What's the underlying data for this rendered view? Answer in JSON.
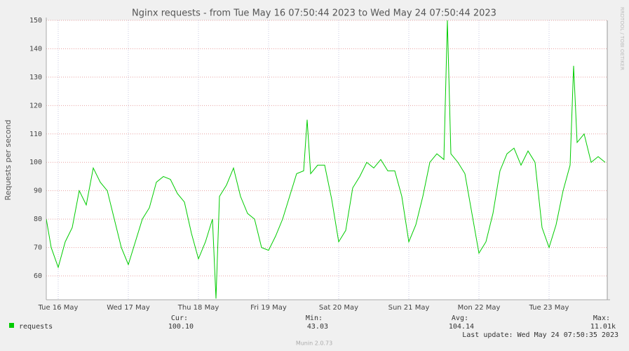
{
  "chart_data": {
    "type": "line",
    "title": "Nginx requests - from Tue May 16 07:50:44 2023 to Wed May 24 07:50:44 2023",
    "y_label": "Requests per second",
    "side_label": "RRDTOOL / TOBI OETIKER",
    "footer": "Munin 2.0.73",
    "last_update": "Last update: Wed May 24 07:50:35 2023",
    "stats": {
      "headers": [
        "Cur:",
        "Min:",
        "Avg:",
        "Max:"
      ],
      "values": [
        "100.10",
        "43.03",
        "104.14",
        "11.01k"
      ]
    },
    "grid": true,
    "xlim": [
      16.33,
      24.33
    ],
    "ylim": [
      51.6,
      150
    ],
    "xticks": [
      {
        "value": 16.5,
        "label": "Tue 16 May"
      },
      {
        "value": 17.5,
        "label": "Wed 17 May"
      },
      {
        "value": 18.5,
        "label": "Thu 18 May"
      },
      {
        "value": 19.5,
        "label": "Fri 19 May"
      },
      {
        "value": 20.5,
        "label": "Sat 20 May"
      },
      {
        "value": 21.5,
        "label": "Sun 21 May"
      },
      {
        "value": 22.5,
        "label": "Mon 22 May"
      },
      {
        "value": 23.5,
        "label": "Tue 23 May"
      }
    ],
    "yticks": [
      60,
      70,
      80,
      90,
      100,
      110,
      120,
      130,
      140,
      150
    ],
    "x": [
      16.33,
      16.4,
      16.5,
      16.6,
      16.7,
      16.8,
      16.9,
      17.0,
      17.1,
      17.2,
      17.3,
      17.4,
      17.5,
      17.6,
      17.7,
      17.8,
      17.9,
      18.0,
      18.1,
      18.2,
      18.3,
      18.4,
      18.5,
      18.6,
      18.7,
      18.75,
      18.8,
      18.9,
      19.0,
      19.1,
      19.2,
      19.3,
      19.4,
      19.5,
      19.6,
      19.7,
      19.8,
      19.9,
      20.0,
      20.05,
      20.1,
      20.2,
      20.3,
      20.4,
      20.5,
      20.6,
      20.7,
      20.8,
      20.9,
      21.0,
      21.1,
      21.2,
      21.3,
      21.4,
      21.5,
      21.6,
      21.7,
      21.8,
      21.9,
      22.0,
      22.05,
      22.1,
      22.2,
      22.3,
      22.4,
      22.5,
      22.6,
      22.7,
      22.8,
      22.9,
      23.0,
      23.1,
      23.2,
      23.3,
      23.4,
      23.5,
      23.6,
      23.7,
      23.8,
      23.85,
      23.9,
      24.0,
      24.1,
      24.2,
      24.3
    ],
    "series": [
      {
        "name": "requests",
        "color": "#00cc00",
        "values": [
          80,
          70,
          63,
          72,
          77,
          90,
          85,
          98,
          93,
          90,
          80,
          70,
          64,
          72,
          80,
          84,
          93,
          95,
          94,
          89,
          86,
          75,
          66,
          72,
          80,
          52,
          88,
          92,
          98,
          88,
          82,
          80,
          70,
          69,
          74,
          80,
          88,
          96,
          97,
          115,
          96,
          99,
          99,
          87,
          72,
          76,
          91,
          95,
          100,
          98,
          101,
          97,
          97,
          88,
          72,
          78,
          88,
          100,
          103,
          101,
          150,
          103,
          100,
          96,
          82,
          68,
          72,
          82,
          97,
          103,
          105,
          99,
          104,
          100,
          77,
          70,
          78,
          90,
          99,
          134,
          107,
          110,
          100,
          102,
          100
        ]
      }
    ]
  }
}
